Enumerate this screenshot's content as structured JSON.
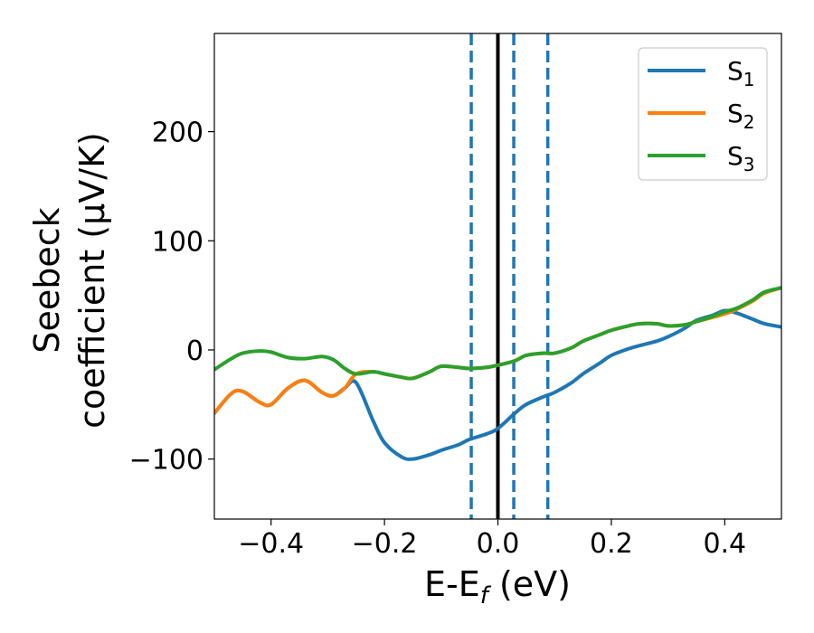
{
  "chart_data": {
    "type": "line",
    "xlabel": {
      "main": "E-E",
      "sub": "f",
      "tail": " (eV)"
    },
    "ylabel": {
      "line1": "Seebeck",
      "line2": "coefficient",
      "unit": "(μV/K)"
    },
    "xlim": [
      -0.5,
      0.5
    ],
    "ylim": [
      -155,
      290
    ],
    "xticks": [
      -0.4,
      -0.2,
      0.0,
      0.2,
      0.4
    ],
    "xtick_labels": [
      "−0.4",
      "−0.2",
      "0.0",
      "0.2",
      "0.4"
    ],
    "yticks": [
      -100,
      0,
      100,
      200
    ],
    "ytick_labels": [
      "−100",
      "0",
      "100",
      "200"
    ],
    "grid": false,
    "legend_position": "top-right",
    "vertical_lines": [
      {
        "x": 0.0,
        "style": "solid",
        "color": "#000000"
      },
      {
        "x": -0.047,
        "style": "dashed",
        "color": "#1f77b4"
      },
      {
        "x": 0.028,
        "style": "dashed",
        "color": "#1f77b4"
      },
      {
        "x": 0.088,
        "style": "dashed",
        "color": "#1f77b4"
      }
    ],
    "series": [
      {
        "name": "S",
        "sub": "1",
        "color": "#1f77b4",
        "x": [
          -0.5,
          -0.47,
          -0.45,
          -0.42,
          -0.4,
          -0.37,
          -0.34,
          -0.31,
          -0.29,
          -0.27,
          -0.25,
          -0.22,
          -0.2,
          -0.17,
          -0.15,
          -0.12,
          -0.1,
          -0.07,
          -0.05,
          -0.02,
          0.0,
          0.03,
          0.05,
          0.08,
          0.1,
          0.13,
          0.15,
          0.18,
          0.2,
          0.23,
          0.25,
          0.28,
          0.3,
          0.33,
          0.35,
          0.38,
          0.4,
          0.42,
          0.45,
          0.47,
          0.5
        ],
        "y": [
          -58,
          -40,
          -38,
          -48,
          -50,
          -35,
          -28,
          -39,
          -42,
          -35,
          -30,
          -65,
          -85,
          -98,
          -100,
          -96,
          -92,
          -87,
          -82,
          -77,
          -72,
          -58,
          -50,
          -43,
          -39,
          -30,
          -22,
          -12,
          -5,
          1,
          4,
          8,
          12,
          20,
          27,
          32,
          36,
          34,
          28,
          24,
          21
        ]
      },
      {
        "name": "S",
        "sub": "2",
        "color": "#ff7f0e",
        "x": [
          -0.5,
          -0.47,
          -0.45,
          -0.42,
          -0.4,
          -0.37,
          -0.34,
          -0.31,
          -0.29,
          -0.27,
          -0.25,
          -0.22,
          -0.2,
          -0.17,
          -0.15,
          -0.12,
          -0.1,
          -0.07,
          -0.05,
          -0.02,
          0.0,
          0.03,
          0.05,
          0.08,
          0.1,
          0.13,
          0.15,
          0.18,
          0.2,
          0.23,
          0.25,
          0.28,
          0.3,
          0.33,
          0.35,
          0.38,
          0.4,
          0.42,
          0.45,
          0.47,
          0.5
        ],
        "y": [
          -58,
          -40,
          -38,
          -48,
          -50,
          -35,
          -28,
          -39,
          -42,
          -35,
          -22,
          -20,
          -22,
          -25,
          -26,
          -20,
          -15,
          -16,
          -17,
          -16,
          -14,
          -10,
          -5,
          -3,
          -3,
          2,
          8,
          14,
          18,
          22,
          24,
          24,
          22,
          23,
          26,
          30,
          33,
          37,
          45,
          52,
          57
        ]
      },
      {
        "name": "S",
        "sub": "3",
        "color": "#2ca02c",
        "x": [
          -0.5,
          -0.47,
          -0.45,
          -0.42,
          -0.4,
          -0.37,
          -0.34,
          -0.31,
          -0.29,
          -0.27,
          -0.25,
          -0.22,
          -0.2,
          -0.17,
          -0.15,
          -0.12,
          -0.1,
          -0.07,
          -0.05,
          -0.02,
          0.0,
          0.03,
          0.05,
          0.08,
          0.1,
          0.13,
          0.15,
          0.18,
          0.2,
          0.23,
          0.25,
          0.28,
          0.3,
          0.33,
          0.35,
          0.38,
          0.4,
          0.42,
          0.45,
          0.47,
          0.5
        ],
        "y": [
          -18,
          -8,
          -3,
          -1,
          -2,
          -7,
          -8,
          -6,
          -9,
          -17,
          -22,
          -20,
          -22,
          -25,
          -26,
          -20,
          -15,
          -16,
          -17,
          -16,
          -14,
          -10,
          -5,
          -3,
          -3,
          2,
          8,
          14,
          18,
          22,
          24,
          24,
          22,
          23,
          26,
          31,
          35,
          38,
          46,
          53,
          57
        ]
      }
    ]
  }
}
